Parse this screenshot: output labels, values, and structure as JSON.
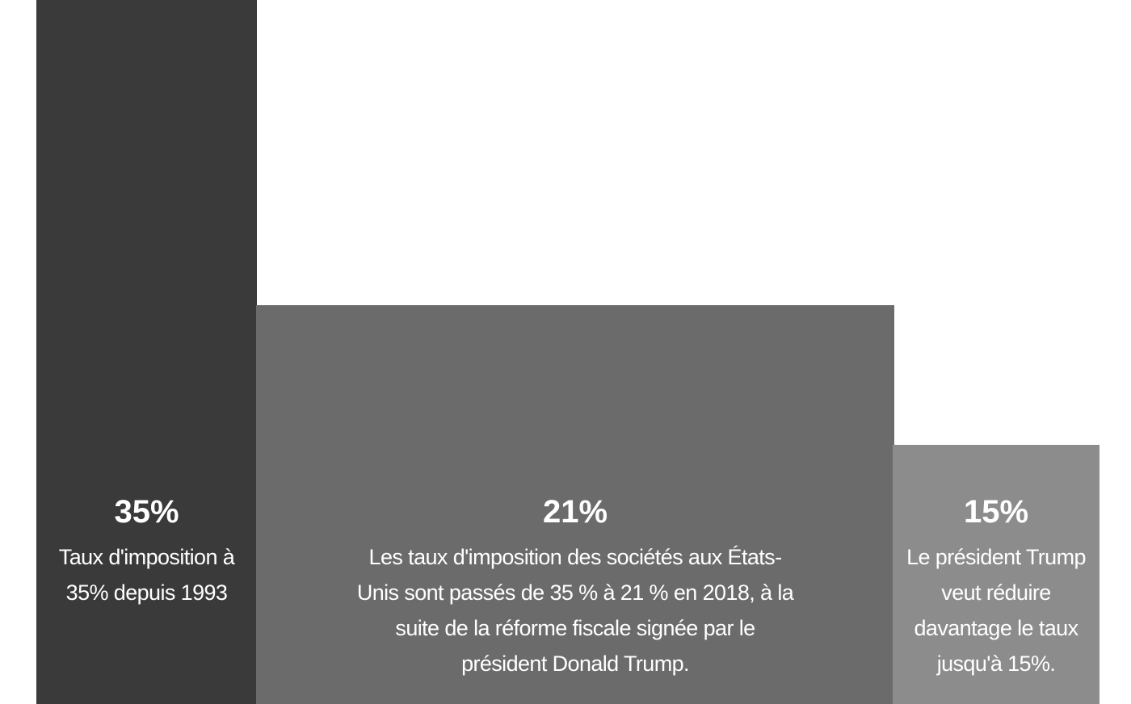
{
  "chart_data": {
    "type": "bar",
    "title": "",
    "xlabel": "",
    "ylabel": "",
    "categories": [
      "35%",
      "21%",
      "15%"
    ],
    "values": [
      35,
      21,
      15
    ],
    "unit": "%",
    "colors": [
      "#3a3a3a",
      "#6b6b6b",
      "#8c8c8c"
    ],
    "grid": false,
    "bars": [
      {
        "value_label": "35%",
        "description_lines": [
          "Taux d'imposition à",
          "35% depuis 1993"
        ]
      },
      {
        "value_label": "21%",
        "description_lines": [
          "Les taux d'imposition des sociétés aux États-",
          "Unis sont passés de 35 % à 21 % en 2018, à la",
          "suite de la réforme fiscale signée par le",
          "président Donald Trump."
        ]
      },
      {
        "value_label": "15%",
        "description_lines": [
          "Le président Trump",
          "veut réduire",
          "davantage le taux",
          "jusqu'à 15%."
        ]
      }
    ]
  }
}
